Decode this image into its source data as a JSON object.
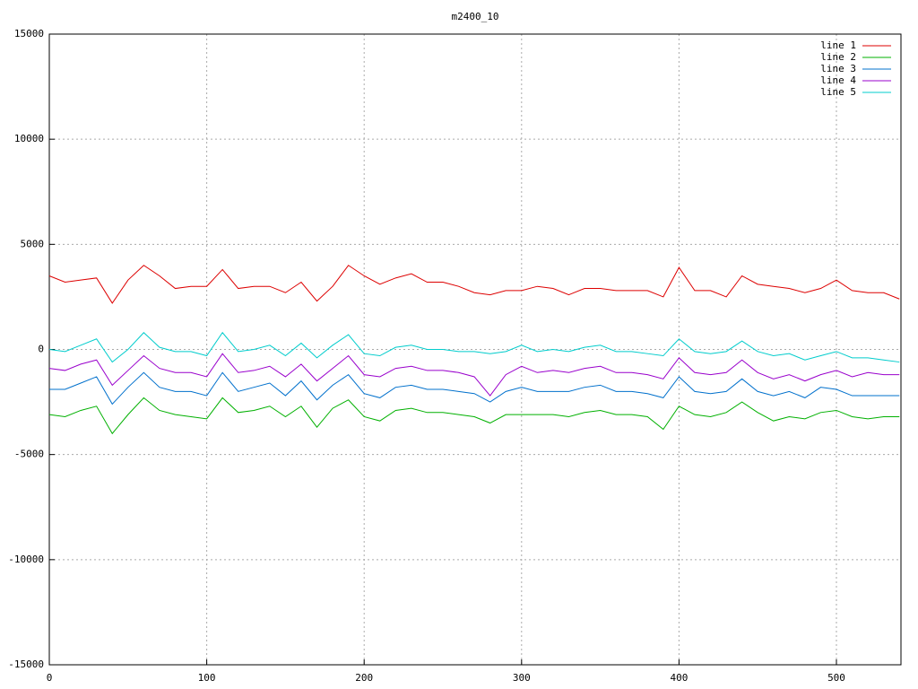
{
  "chart_data": {
    "type": "line",
    "title": "m2400_10",
    "x": [
      0,
      10,
      20,
      30,
      40,
      50,
      60,
      70,
      80,
      90,
      100,
      110,
      120,
      130,
      140,
      150,
      160,
      170,
      180,
      190,
      200,
      210,
      220,
      230,
      240,
      250,
      260,
      270,
      280,
      290,
      300,
      310,
      320,
      330,
      340,
      350,
      360,
      370,
      380,
      390,
      400,
      410,
      420,
      430,
      440,
      450,
      460,
      470,
      480,
      490,
      500,
      510,
      520,
      530,
      540
    ],
    "series": [
      {
        "name": "line 1",
        "color": "#dd0000",
        "values": [
          3500,
          3200,
          3300,
          3400,
          2200,
          3300,
          4000,
          3500,
          2900,
          3000,
          3000,
          3800,
          2900,
          3000,
          3000,
          2700,
          3200,
          2300,
          3000,
          4000,
          3500,
          3100,
          3400,
          3600,
          3200,
          3200,
          3000,
          2700,
          2600,
          2800,
          2800,
          3000,
          2900,
          2600,
          2900,
          2900,
          2800,
          2800,
          2800,
          2500,
          3900,
          2800,
          2800,
          2500,
          3500,
          3100,
          3000,
          2900,
          2700,
          2900,
          3300,
          2800,
          2700,
          2700,
          2400
        ]
      },
      {
        "name": "line 2",
        "color": "#00b000",
        "values": [
          -3100,
          -3200,
          -2900,
          -2700,
          -4000,
          -3100,
          -2300,
          -2900,
          -3100,
          -3200,
          -3300,
          -2300,
          -3000,
          -2900,
          -2700,
          -3200,
          -2700,
          -3700,
          -2800,
          -2400,
          -3200,
          -3400,
          -2900,
          -2800,
          -3000,
          -3000,
          -3100,
          -3200,
          -3500,
          -3100,
          -3100,
          -3100,
          -3100,
          -3200,
          -3000,
          -2900,
          -3100,
          -3100,
          -3200,
          -3800,
          -2700,
          -3100,
          -3200,
          -3000,
          -2500,
          -3000,
          -3400,
          -3200,
          -3300,
          -3000,
          -2900,
          -3200,
          -3300,
          -3200,
          -3200
        ]
      },
      {
        "name": "line 3",
        "color": "#0070cc",
        "values": [
          -1900,
          -1900,
          -1600,
          -1300,
          -2600,
          -1800,
          -1100,
          -1800,
          -2000,
          -2000,
          -2200,
          -1100,
          -2000,
          -1800,
          -1600,
          -2200,
          -1500,
          -2400,
          -1700,
          -1200,
          -2100,
          -2300,
          -1800,
          -1700,
          -1900,
          -1900,
          -2000,
          -2100,
          -2500,
          -2000,
          -1800,
          -2000,
          -2000,
          -2000,
          -1800,
          -1700,
          -2000,
          -2000,
          -2100,
          -2300,
          -1300,
          -2000,
          -2100,
          -2000,
          -1400,
          -2000,
          -2200,
          -2000,
          -2300,
          -1800,
          -1900,
          -2200,
          -2200,
          -2200,
          -2200
        ]
      },
      {
        "name": "line 4",
        "color": "#9900cc",
        "values": [
          -900,
          -1000,
          -700,
          -500,
          -1700,
          -1000,
          -300,
          -900,
          -1100,
          -1100,
          -1300,
          -200,
          -1100,
          -1000,
          -800,
          -1300,
          -700,
          -1500,
          -900,
          -300,
          -1200,
          -1300,
          -900,
          -800,
          -1000,
          -1000,
          -1100,
          -1300,
          -2200,
          -1200,
          -800,
          -1100,
          -1000,
          -1100,
          -900,
          -800,
          -1100,
          -1100,
          -1200,
          -1400,
          -400,
          -1100,
          -1200,
          -1100,
          -500,
          -1100,
          -1400,
          -1200,
          -1500,
          -1200,
          -1000,
          -1300,
          -1100,
          -1200,
          -1200
        ]
      },
      {
        "name": "line 5",
        "color": "#00cccc",
        "values": [
          0,
          -100,
          200,
          500,
          -600,
          0,
          800,
          100,
          -100,
          -100,
          -300,
          800,
          -100,
          0,
          200,
          -300,
          300,
          -400,
          200,
          700,
          -200,
          -300,
          100,
          200,
          0,
          0,
          -100,
          -100,
          -200,
          -100,
          200,
          -100,
          0,
          -100,
          100,
          200,
          -100,
          -100,
          -200,
          -300,
          500,
          -100,
          -200,
          -100,
          400,
          -100,
          -300,
          -200,
          -500,
          -300,
          -100,
          -400,
          -400,
          -500,
          -600
        ]
      }
    ],
    "xlim": [
      0,
      541
    ],
    "xticks": [
      0,
      100,
      200,
      300,
      400,
      500
    ],
    "ylim": [
      -15000,
      15000
    ],
    "yticks": [
      -15000,
      -10000,
      -5000,
      0,
      5000,
      10000,
      15000
    ],
    "grid": true,
    "legend": "top-right"
  }
}
